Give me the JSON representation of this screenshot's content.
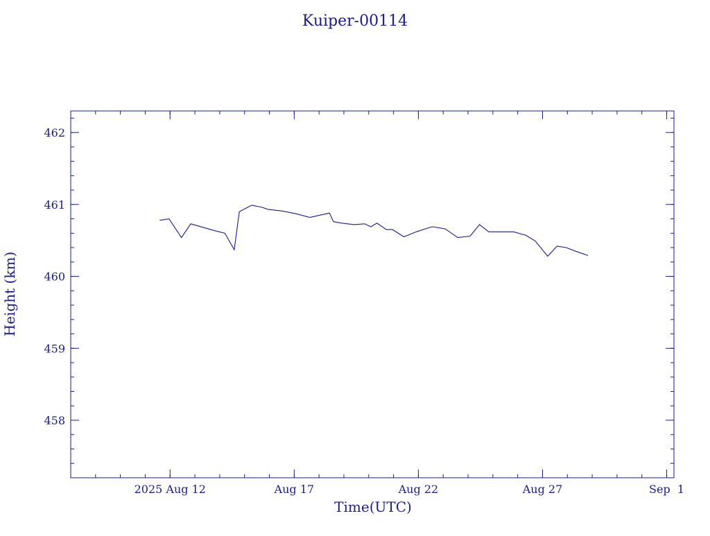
{
  "chart_data": {
    "type": "line",
    "title": "Kuiper-00114",
    "xlabel": "Time(UTC)",
    "ylabel": "Height (km)",
    "xlim": [
      "2025-08-08T00:00",
      "2025-09-01T07:00"
    ],
    "ylim": [
      457.2,
      462.3
    ],
    "grid": false,
    "legend": "none",
    "line_color": "#1a1a8c",
    "x_ticks": [
      {
        "date": "2025-08-12",
        "label": "2025 Aug 12"
      },
      {
        "date": "2025-08-17",
        "label": "Aug 17"
      },
      {
        "date": "2025-08-22",
        "label": "Aug 22"
      },
      {
        "date": "2025-08-27",
        "label": "Aug 27"
      },
      {
        "date": "2025-09-01",
        "label": "Sep  1"
      }
    ],
    "x_minor_step_days": 1,
    "y_ticks": [
      458,
      459,
      460,
      461,
      462
    ],
    "y_minor_step": 0.2,
    "series": [
      {
        "x": [
          "2025-08-11T14:00",
          "2025-08-11T23:00",
          "2025-08-12T11:00",
          "2025-08-12T20:00",
          "2025-08-13T18:00",
          "2025-08-14T05:00",
          "2025-08-14T14:00",
          "2025-08-14T19:00",
          "2025-08-15T07:00",
          "2025-08-15T17:00",
          "2025-08-15T23:00",
          "2025-08-16T12:00",
          "2025-08-17T02:00",
          "2025-08-17T15:00",
          "2025-08-18T10:00",
          "2025-08-18T14:00",
          "2025-08-18T22:00",
          "2025-08-19T10:00",
          "2025-08-19T20:00",
          "2025-08-20T02:00",
          "2025-08-20T08:00",
          "2025-08-20T17:00",
          "2025-08-20T23:00",
          "2025-08-21T10:00",
          "2025-08-21T22:00",
          "2025-08-22T11:00",
          "2025-08-22T14:00",
          "2025-08-23T02:00",
          "2025-08-23T14:00",
          "2025-08-24T02:00",
          "2025-08-24T11:00",
          "2025-08-24T20:00",
          "2025-08-25T08:00",
          "2025-08-25T20:00",
          "2025-08-26T08:00",
          "2025-08-26T17:00",
          "2025-08-27T05:00",
          "2025-08-27T14:00",
          "2025-08-27T23:00",
          "2025-08-28T08:00",
          "2025-08-28T20:00"
        ],
        "y": [
          460.78,
          460.8,
          460.54,
          460.73,
          460.64,
          460.6,
          460.37,
          460.9,
          460.99,
          460.96,
          460.93,
          460.91,
          460.87,
          460.82,
          460.88,
          460.76,
          460.74,
          460.72,
          460.73,
          460.69,
          460.74,
          460.65,
          460.65,
          460.55,
          460.62,
          460.68,
          460.69,
          460.66,
          460.54,
          460.56,
          460.72,
          460.62,
          460.62,
          460.62,
          460.57,
          460.49,
          460.28,
          460.42,
          460.4,
          460.35,
          460.29
        ]
      }
    ]
  }
}
